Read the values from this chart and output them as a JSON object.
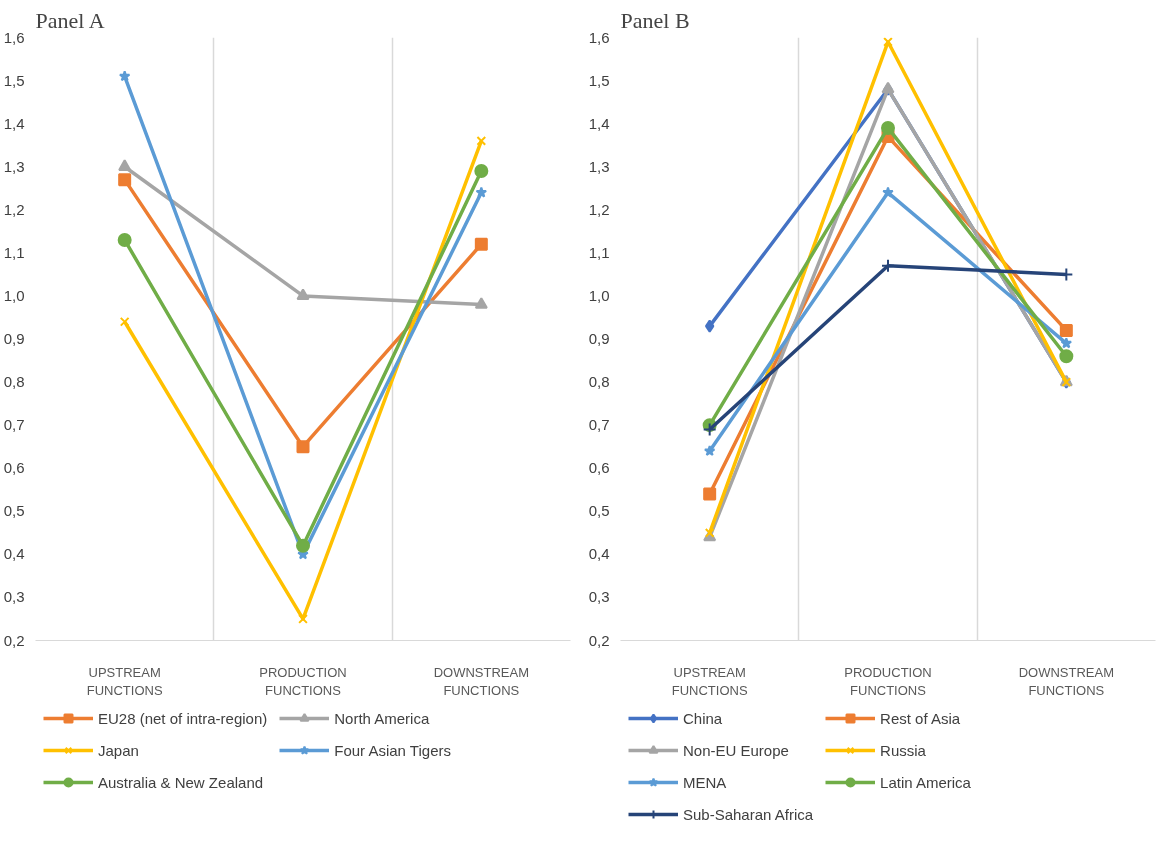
{
  "chart_data": [
    {
      "type": "line",
      "title": "Panel A",
      "categories": [
        "UPSTREAM\nFUNCTIONS",
        "PRODUCTION\nFUNCTIONS",
        "DOWNSTREAM\nFUNCTIONS"
      ],
      "ylim": [
        0.2,
        1.6
      ],
      "yticks": [
        {
          "value": 0.2,
          "label": "0,2"
        },
        {
          "value": 0.3,
          "label": "0,3"
        },
        {
          "value": 0.4,
          "label": "0,4"
        },
        {
          "value": 0.5,
          "label": "0,5"
        },
        {
          "value": 0.6,
          "label": "0,6"
        },
        {
          "value": 0.7,
          "label": "0,7"
        },
        {
          "value": 0.8,
          "label": "0,8"
        },
        {
          "value": 0.9,
          "label": "0,9"
        },
        {
          "value": 1.0,
          "label": "1,0"
        },
        {
          "value": 1.1,
          "label": "1,1"
        },
        {
          "value": 1.2,
          "label": "1,2"
        },
        {
          "value": 1.3,
          "label": "1,3"
        },
        {
          "value": 1.4,
          "label": "1,4"
        },
        {
          "value": 1.5,
          "label": "1,5"
        },
        {
          "value": 1.6,
          "label": "1,6"
        }
      ],
      "grid": "x",
      "legend": "bottom",
      "line_style": "solid",
      "series": [
        {
          "name": "EU28 (net of intra-region)",
          "color": "#ed7d31",
          "marker": "square",
          "values": [
            1.27,
            0.65,
            1.12
          ]
        },
        {
          "name": "North America",
          "color": "#a5a5a5",
          "marker": "triangle",
          "values": [
            1.3,
            1.0,
            0.98
          ]
        },
        {
          "name": "Japan",
          "color": "#ffc000",
          "marker": "cross",
          "values": [
            0.94,
            0.25,
            1.36
          ]
        },
        {
          "name": "Four Asian Tigers",
          "color": "#5b9bd5",
          "marker": "star",
          "values": [
            1.51,
            0.4,
            1.24
          ]
        },
        {
          "name": "Australia & New Zealand",
          "color": "#70ad47",
          "marker": "circle",
          "values": [
            1.13,
            0.42,
            1.29
          ]
        }
      ]
    },
    {
      "type": "line",
      "title": "Panel B",
      "categories": [
        "UPSTREAM\nFUNCTIONS",
        "PRODUCTION\nFUNCTIONS",
        "DOWNSTREAM\nFUNCTIONS"
      ],
      "ylim": [
        0.2,
        1.6
      ],
      "yticks": [
        {
          "value": 0.2,
          "label": "0,2"
        },
        {
          "value": 0.3,
          "label": "0,3"
        },
        {
          "value": 0.4,
          "label": "0,4"
        },
        {
          "value": 0.5,
          "label": "0,5"
        },
        {
          "value": 0.6,
          "label": "0,6"
        },
        {
          "value": 0.7,
          "label": "0,7"
        },
        {
          "value": 0.8,
          "label": "0,8"
        },
        {
          "value": 0.9,
          "label": "0,9"
        },
        {
          "value": 1.0,
          "label": "1,0"
        },
        {
          "value": 1.1,
          "label": "1,1"
        },
        {
          "value": 1.2,
          "label": "1,2"
        },
        {
          "value": 1.3,
          "label": "1,3"
        },
        {
          "value": 1.4,
          "label": "1,4"
        },
        {
          "value": 1.5,
          "label": "1,5"
        },
        {
          "value": 1.6,
          "label": "1,6"
        }
      ],
      "grid": "x",
      "legend": "bottom",
      "line_style": "solid",
      "series": [
        {
          "name": "China",
          "color": "#4472c4",
          "marker": "diamond",
          "values": [
            0.93,
            1.48,
            0.8
          ]
        },
        {
          "name": "Rest of Asia",
          "color": "#ed7d31",
          "marker": "square",
          "values": [
            0.54,
            1.37,
            0.92
          ]
        },
        {
          "name": "Non-EU Europe",
          "color": "#a5a5a5",
          "marker": "triangle",
          "values": [
            0.44,
            1.48,
            0.8
          ]
        },
        {
          "name": "Russia",
          "color": "#ffc000",
          "marker": "cross",
          "values": [
            0.45,
            1.59,
            0.8
          ]
        },
        {
          "name": "MENA",
          "color": "#5b9bd5",
          "marker": "star",
          "values": [
            0.64,
            1.24,
            0.89
          ]
        },
        {
          "name": "Latin America",
          "color": "#70ad47",
          "marker": "circle",
          "values": [
            0.7,
            1.39,
            0.86
          ]
        },
        {
          "name": "Sub-Saharan Africa",
          "color": "#264478",
          "marker": "plus",
          "values": [
            0.69,
            1.07,
            1.05
          ]
        }
      ]
    }
  ]
}
